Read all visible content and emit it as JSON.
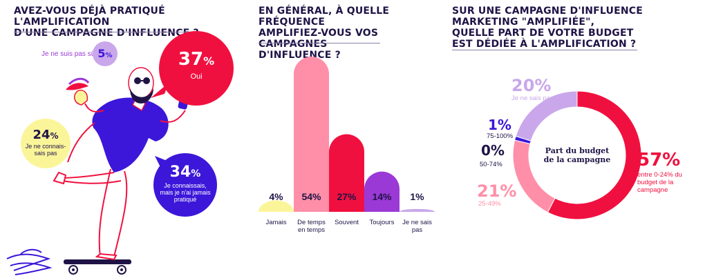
{
  "colors": {
    "navy": "#1f1346",
    "red": "#f0103f",
    "pink": "#ff8fa8",
    "purple": "#9b39d6",
    "lavender": "#c9a7ea",
    "yellow": "#fbf59a",
    "blue": "#3c17d9"
  },
  "panel1": {
    "title_line1": "AVEZ-VOUS DÉJÀ PRATIQUÉ L'AMPLIFICATION",
    "title_line2": "D'UNE CAMPAGNE D'INFLUENCE ?",
    "icons": [
      "man-on-skateboard-illustration",
      "phone-icon",
      "flame-icon"
    ],
    "answers": [
      {
        "pct": "37",
        "pct_sign": "%",
        "label": "Oui"
      },
      {
        "pct": "5",
        "pct_sign": "%",
        "label": "Je ne suis pas sûr"
      },
      {
        "pct": "24",
        "pct_sign": "%",
        "label_line1": "Je ne connais-",
        "label_line2": "sais pas"
      },
      {
        "pct": "34",
        "pct_sign": "%",
        "label_line1": "Je connaissais,",
        "label_line2": "mais je n'ai jamais",
        "label_line3": "pratiqué"
      }
    ]
  },
  "panel2": {
    "title_line1": "EN GÉNÉRAL, À QUELLE FRÉQUENCE",
    "title_line2": "AMPLIFIEZ-VOUS VOS CAMPAGNES",
    "title_line3": "D'INFLUENCE ?"
  },
  "panel3": {
    "title_line1": "SUR UNE CAMPAGNE D'INFLUENCE",
    "title_line2": "MARKETING \"AMPLIFIÉE\",",
    "title_line3": "QUELLE PART DE VOTRE BUDGET",
    "title_line4": "EST DÉDIÉE À L'AMPLIFICATION ?",
    "center_line1": "Part du budget",
    "center_line2": "de la campagne"
  },
  "chart_data": [
    {
      "type": "bar",
      "title": "En général, à quelle fréquence amplifiez-vous vos campagnes d'influence ?",
      "categories": [
        "Jamais",
        "De temps en temps",
        "Souvent",
        "Toujours",
        "Je ne sais pas"
      ],
      "category_lines": [
        [
          "Jamais"
        ],
        [
          "De temps",
          "en temps"
        ],
        [
          "Souvent"
        ],
        [
          "Toujours"
        ],
        [
          "Je ne sais",
          "pas"
        ]
      ],
      "values": [
        4,
        54,
        27,
        14,
        1
      ],
      "value_labels": [
        "4%",
        "54%",
        "27%",
        "14%",
        "1%"
      ],
      "colors": [
        "#fbf59a",
        "#ff8fa8",
        "#f0103f",
        "#9b39d6",
        "#c9a7ea"
      ],
      "ylim": [
        0,
        54
      ]
    },
    {
      "type": "pie",
      "title": "Sur une campagne d'influence marketing \"amplifiée\", quelle part de votre budget est dédiée à l'amplification ?",
      "center_label": "Part du budget de la campagne",
      "slices": [
        {
          "label": "entre 0-24% du budget de la campagne",
          "label_lines": [
            "entre 0-24% du",
            "budget de la",
            "campagne"
          ],
          "value": 57,
          "value_label": "57%",
          "color": "#f0103f"
        },
        {
          "label": "25-49%",
          "label_lines": [
            "25-49%"
          ],
          "value": 21,
          "value_label": "21%",
          "color": "#ff8fa8"
        },
        {
          "label": "50-74%",
          "label_lines": [
            "50-74%"
          ],
          "value": 0,
          "value_label": "0%",
          "color": "#1f1346"
        },
        {
          "label": "75-100%",
          "label_lines": [
            "75-100%"
          ],
          "value": 1,
          "value_label": "1%",
          "color": "#3c17d9"
        },
        {
          "label": "Je ne sais pas",
          "label_lines": [
            "Je ne sais pas"
          ],
          "value": 20,
          "value_label": "20%",
          "color": "#c9a7ea"
        }
      ]
    }
  ]
}
